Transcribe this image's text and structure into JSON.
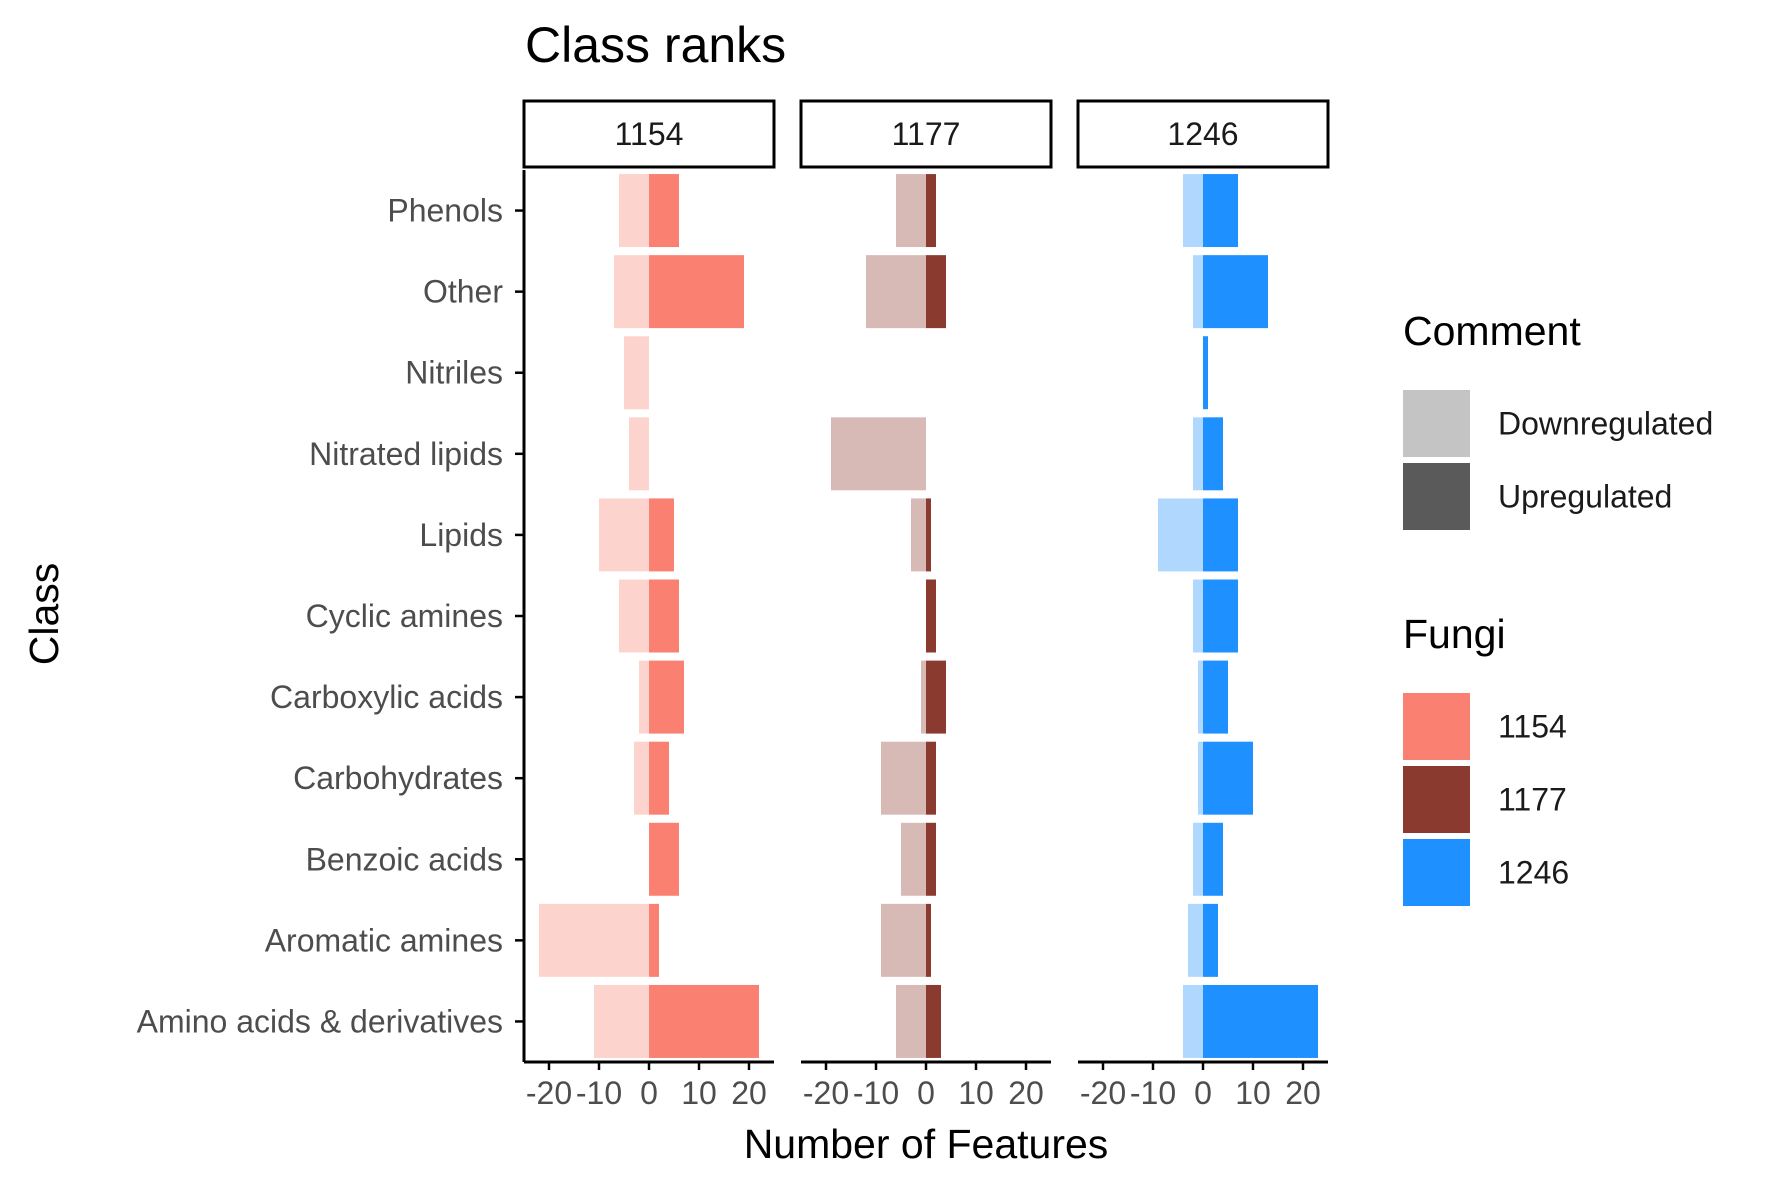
{
  "chart_data": {
    "type": "bar",
    "orientation": "horizontal",
    "title": "Class ranks",
    "xlabel": "Number of Features",
    "ylabel": "Class",
    "xlim": [
      -25,
      25
    ],
    "x_ticks": [
      -20,
      -10,
      0,
      10,
      20
    ],
    "categories": [
      "Phenols",
      "Other",
      "Nitriles",
      "Nitrated lipids",
      "Lipids",
      "Cyclic amines",
      "Carboxylic acids",
      "Carbohydrates",
      "Benzoic acids",
      "Aromatic amines",
      "Amino acids & derivatives"
    ],
    "panels": [
      {
        "name": "1154",
        "color": "#fa8072",
        "downregulated": [
          -6,
          -7,
          -5,
          -4,
          -10,
          -6,
          -2,
          -3,
          0,
          -22,
          -11
        ],
        "upregulated": [
          6,
          19,
          0,
          0,
          5,
          6,
          7,
          4,
          6,
          2,
          22
        ]
      },
      {
        "name": "1177",
        "color": "#8b3a2f",
        "downregulated": [
          -6,
          -12,
          0,
          -19,
          -3,
          0,
          -1,
          -9,
          -5,
          -9,
          -6
        ],
        "upregulated": [
          2,
          4,
          0,
          0,
          1,
          2,
          4,
          2,
          2,
          1,
          3
        ]
      },
      {
        "name": "1246",
        "color": "#1e90ff",
        "downregulated": [
          -4,
          -2,
          0,
          -2,
          -9,
          -2,
          -1,
          -1,
          -2,
          -3,
          -4
        ],
        "upregulated": [
          7,
          13,
          1,
          4,
          7,
          7,
          5,
          10,
          4,
          3,
          23
        ]
      }
    ],
    "legends": [
      {
        "title": "Comment",
        "entries": [
          {
            "label": "Downregulated",
            "color": "#c4c4c4"
          },
          {
            "label": "Upregulated",
            "color": "#5a5a5a"
          }
        ]
      },
      {
        "title": "Fungi",
        "entries": [
          {
            "label": "1154",
            "color": "#fa8072"
          },
          {
            "label": "1177",
            "color": "#8b3a2f"
          },
          {
            "label": "1246",
            "color": "#1e90ff"
          }
        ]
      }
    ],
    "downregulated_opacity": 0.35,
    "legend_position": "right",
    "grid": false
  }
}
